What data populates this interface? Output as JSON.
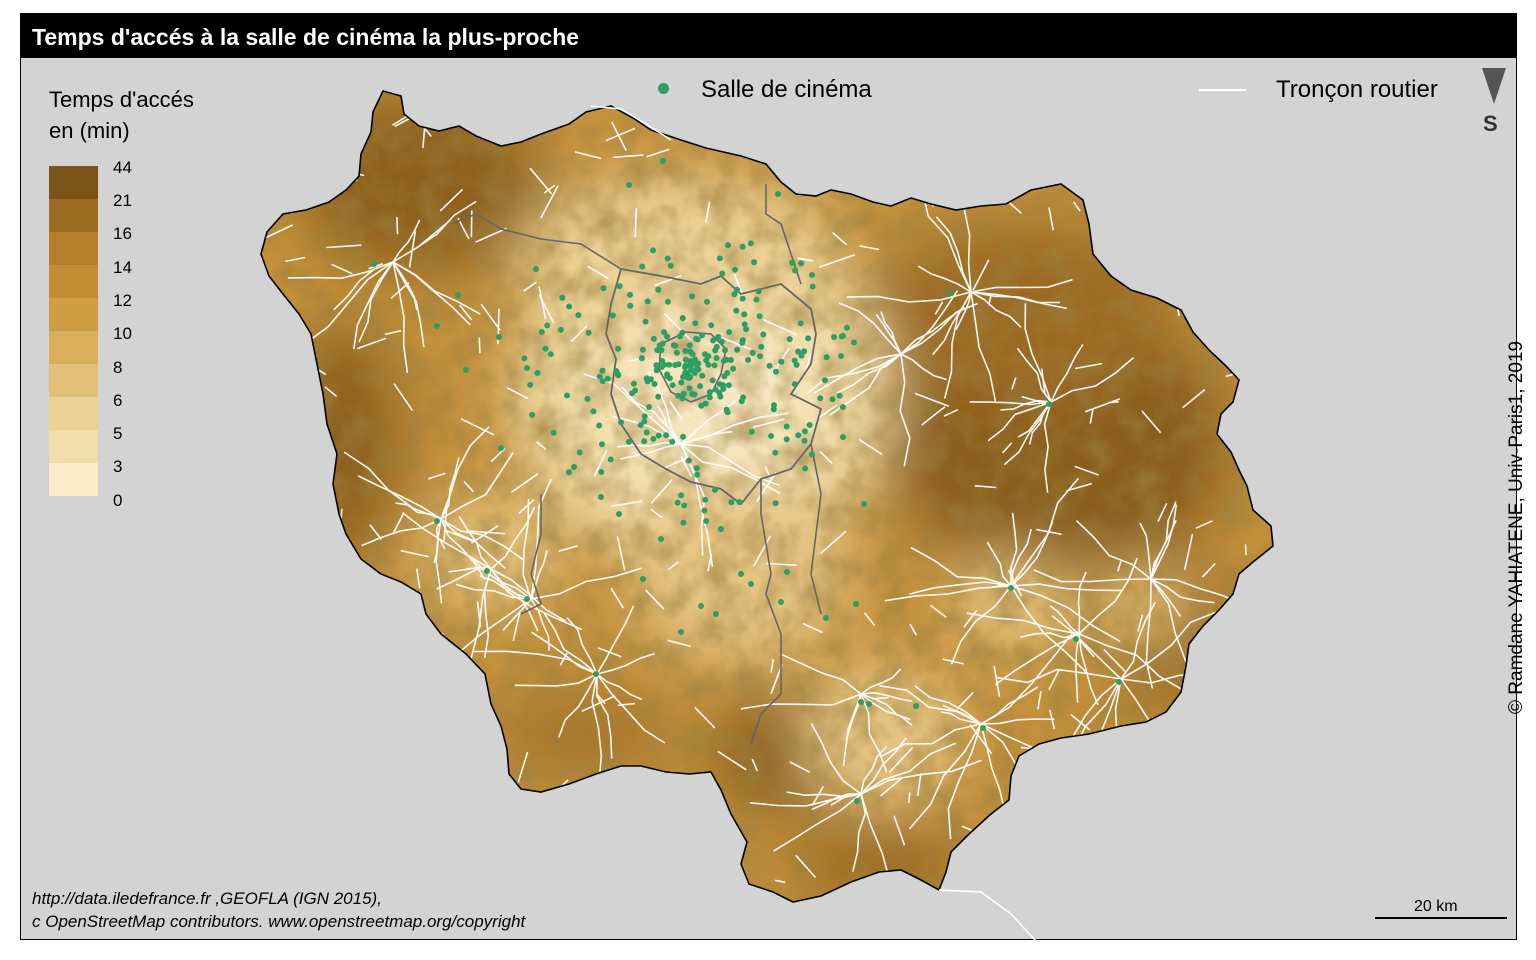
{
  "title": "Temps d'accés à la salle de cinéma la plus-proche",
  "legend": {
    "title_line1": "Temps d'accés",
    "title_line2": "en (min)",
    "classes": [
      {
        "label": "44",
        "color": "#7a5318"
      },
      {
        "label": "21",
        "color": "#9b6b22"
      },
      {
        "label": "16",
        "color": "#b47e2a"
      },
      {
        "label": "14",
        "color": "#c28d34"
      },
      {
        "label": "12",
        "color": "#cf9e44"
      },
      {
        "label": "10",
        "color": "#d9af5c"
      },
      {
        "label": "8",
        "color": "#e2c07a"
      },
      {
        "label": "6",
        "color": "#ebd196"
      },
      {
        "label": "5",
        "color": "#f1ddaa"
      },
      {
        "label": "3",
        "color": "#f6e6bd"
      },
      {
        "label": "0",
        "color": null
      }
    ],
    "last_color": "#fbedcc"
  },
  "point_legend": {
    "label": "Salle de cinéma",
    "color": "#2e9e62"
  },
  "line_legend": {
    "label": "Tronçon routier",
    "color": "#ffffff"
  },
  "north_arrow": {
    "label": "S"
  },
  "credit": "© Ramdane YAHIATENE, Univ-Paris1, 2019",
  "source": {
    "line1": "http://data.iledefrance.fr ,GEOFLA (IGN 2015),",
    "line2": "c OpenStreetMap contributors. www.openstreetmap.org/copyright"
  },
  "scale": {
    "label": "20 km"
  },
  "colors": {
    "background": "#d3d3d3",
    "title_bar": "#000000",
    "cinema": "#2e9e62"
  }
}
